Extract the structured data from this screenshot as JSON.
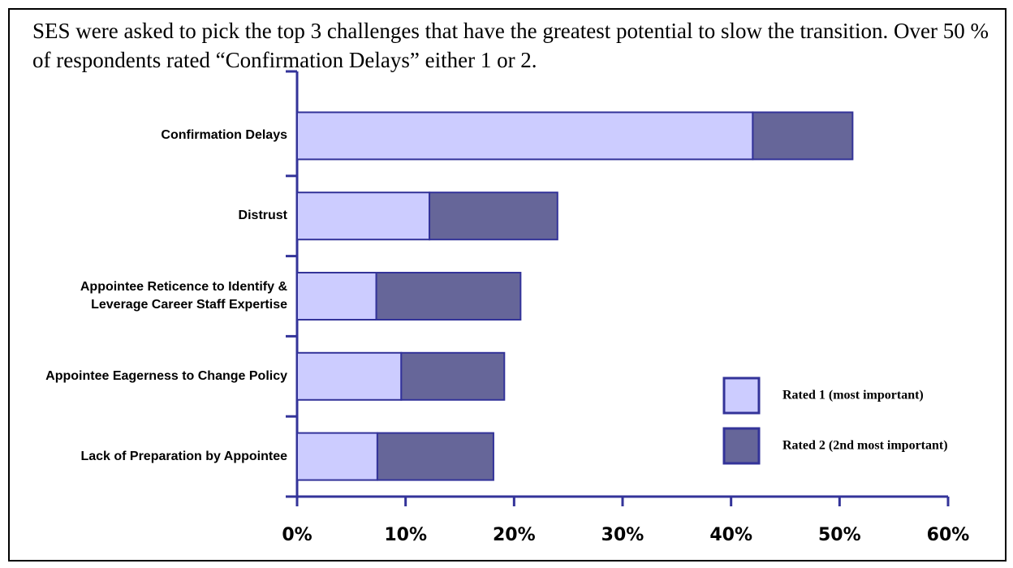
{
  "chart_data": {
    "type": "stacked_barh",
    "title": "SES were asked to pick the top 3 challenges that have the greatest potential to slow the transition. Over 50 % of respondents rated “Confirmation Delays” either 1 or 2.",
    "categories": [
      "Confirmation Delays",
      "Distrust",
      "Appointee Reticence to Identify & Leverage Career Staff Expertise",
      "Appointee Eagerness to Change Policy",
      "Lack of Preparation by Appointee"
    ],
    "series": [
      {
        "name": "Rated 1 (most important)",
        "color": "#ccccff",
        "values": [
          42,
          12.2,
          7.3,
          9.6,
          7.4
        ]
      },
      {
        "name": "Rated 2 (2nd most important)",
        "color": "#666699",
        "values": [
          9.2,
          11.8,
          13.3,
          9.5,
          10.7
        ]
      }
    ],
    "xlim": [
      0,
      60
    ],
    "xticks": [
      {
        "value": 0,
        "label": "0%"
      },
      {
        "value": 10,
        "label": "10%"
      },
      {
        "value": 20,
        "label": "20%"
      },
      {
        "value": 30,
        "label": "30%"
      },
      {
        "value": 40,
        "label": "40%"
      },
      {
        "value": 50,
        "label": "50%"
      },
      {
        "value": 60,
        "label": "60%"
      }
    ],
    "legend": "right"
  }
}
